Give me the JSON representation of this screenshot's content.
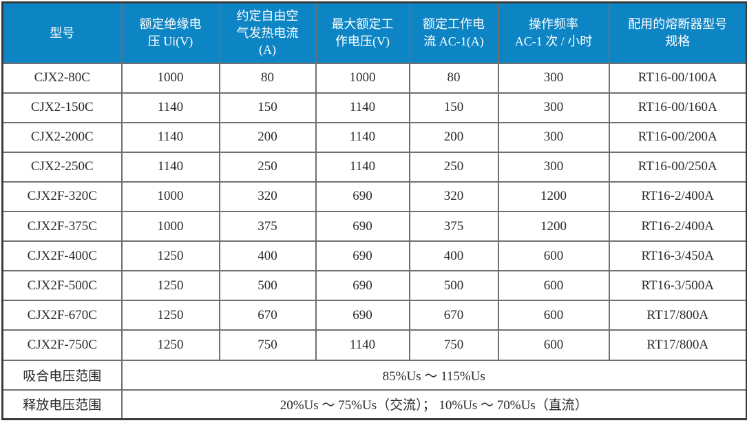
{
  "colors": {
    "header_bg": "#0d85c4",
    "header_text": "#ffffff",
    "body_text": "#2b2b2b",
    "grid_line": "#6f6f6f",
    "outer_border": "#3a3a3a"
  },
  "table": {
    "columns": [
      "型号",
      "额定绝缘电\n压 Ui(V)",
      "约定自由空\n气发热电流\n(A)",
      "最大额定工\n作电压(V)",
      "额定工作电\n流 AC-1(A)",
      "操作频率\nAC-1 次 / 小时",
      "配用的熔断器型号\n规格"
    ],
    "rows": [
      [
        "CJX2-80C",
        "1000",
        "80",
        "1000",
        "80",
        "300",
        "RT16-00/100A"
      ],
      [
        "CJX2-150C",
        "1140",
        "150",
        "1140",
        "150",
        "300",
        "RT16-00/160A"
      ],
      [
        "CJX2-200C",
        "1140",
        "200",
        "1140",
        "200",
        "300",
        "RT16-00/200A"
      ],
      [
        "CJX2-250C",
        "1140",
        "250",
        "1140",
        "250",
        "300",
        "RT16-00/250A"
      ],
      [
        "CJX2F-320C",
        "1000",
        "320",
        "690",
        "320",
        "1200",
        "RT16-2/400A"
      ],
      [
        "CJX2F-375C",
        "1000",
        "375",
        "690",
        "375",
        "1200",
        "RT16-2/400A"
      ],
      [
        "CJX2F-400C",
        "1250",
        "400",
        "690",
        "400",
        "600",
        "RT16-3/450A"
      ],
      [
        "CJX2F-500C",
        "1250",
        "500",
        "690",
        "500",
        "600",
        "RT16-3/500A"
      ],
      [
        "CJX2F-670C",
        "1250",
        "670",
        "690",
        "670",
        "600",
        "RT17/800A"
      ],
      [
        "CJX2F-750C",
        "1250",
        "750",
        "1140",
        "750",
        "600",
        "RT17/800A"
      ]
    ],
    "footer_rows": [
      {
        "label": "吸合电压范围",
        "value": "85%Us ～ 115%Us"
      },
      {
        "label": "释放电压范围",
        "value": "20%Us ～ 75%Us（交流）； 10%Us ～ 70%Us（直流）"
      }
    ]
  }
}
